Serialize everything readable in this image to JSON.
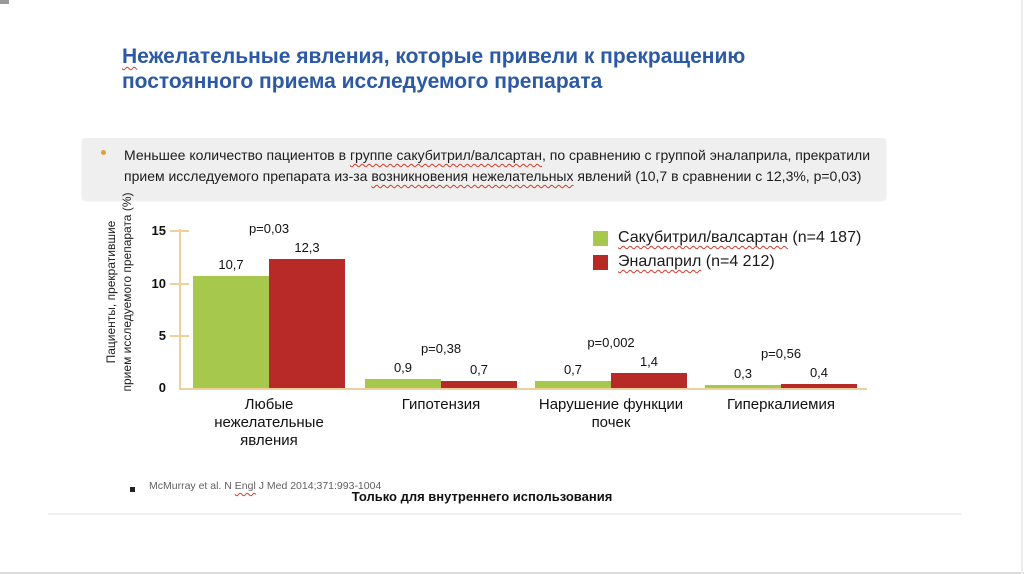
{
  "title": {
    "wavy_part": "Н",
    "rest": "ежелательные явления, которые привели к прекращению постоянного приема исследуемого препарата"
  },
  "callout": {
    "part1": "Меньшее количество пациентов в ",
    "wavy1": "группе сакубитрил/валсартан",
    "part2": ", по сравнению с группой эналаприла, прекратили прием исследуемого препарата из-за ",
    "wavy2": "возникновения нежелательных",
    "part3": " явлений (10,7 в сравнении с 12,3%, p=0,03)"
  },
  "legend": {
    "items": [
      {
        "wavy": "Сакубитрил/валсартан",
        "rest": " (n=4 187)",
        "color": "#a5c84d"
      },
      {
        "wavy": "Эналаприл",
        "rest": " (n=4 212)",
        "color": "#b82a28"
      }
    ]
  },
  "footer": {
    "reference_pre": "McMurray et al. N ",
    "reference_wavy": "Engl",
    "reference_post": " J Med 2014;371:993-1004",
    "internal_use": "Только для внутреннего использования"
  },
  "chart_data": {
    "type": "bar",
    "title": "",
    "ylabel": "Пациенты, прекратившие прием исследуемого препарата (%)",
    "ylabel_lines": [
      "Пациенты, прекратившие",
      "прием исследуемого препарата (%)"
    ],
    "ylim": [
      0,
      15
    ],
    "yticks": [
      0,
      5,
      10,
      15
    ],
    "grid": false,
    "legend_position": "top-right",
    "axis_color": "#f0d09a",
    "categories": [
      "Любые нежелательные явления",
      "Гипотензия",
      "Нарушение функции почек",
      "Гиперкалиемия"
    ],
    "category_lines": [
      [
        "Любые",
        "нежелательные",
        "явления"
      ],
      [
        "Гипотензия"
      ],
      [
        "Нарушение функции",
        "почек"
      ],
      [
        "Гиперкалиемия"
      ]
    ],
    "series": [
      {
        "name": "Сакубитрил/валсартан (n=4 187)",
        "color": "#a5c84d",
        "values": [
          10.7,
          0.9,
          0.7,
          0.3
        ],
        "value_labels": [
          "10,7",
          "0,9",
          "0,7",
          "0,3"
        ]
      },
      {
        "name": "Эналаприл (n=4 212)",
        "color": "#b82a28",
        "values": [
          12.3,
          0.7,
          1.4,
          0.4
        ],
        "value_labels": [
          "12,3",
          "0,7",
          "1,4",
          "0,4"
        ]
      }
    ],
    "p_values": [
      "p=0,03",
      "p=0,38",
      "p=0,002",
      "p=0,56"
    ]
  }
}
